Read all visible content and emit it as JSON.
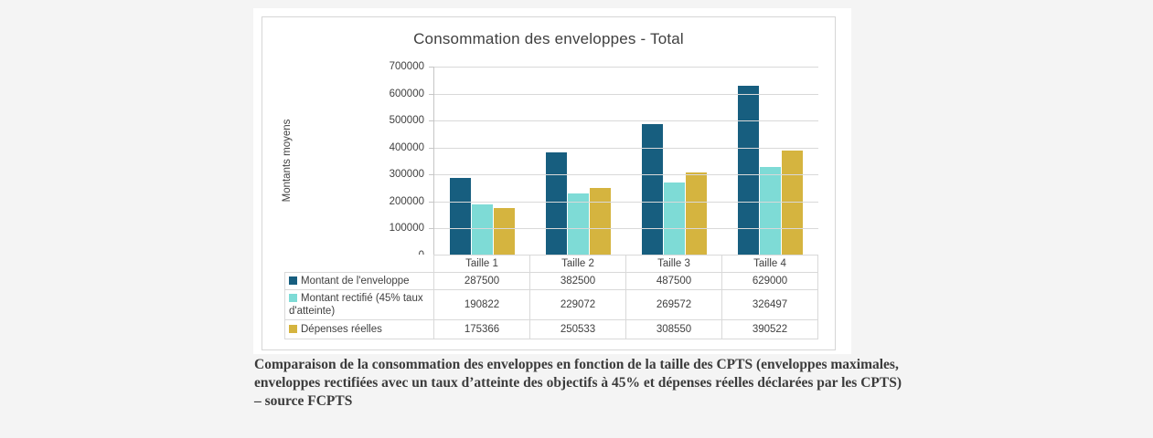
{
  "colors": {
    "page_background": "#f4f4f4",
    "card_background": "#ffffff",
    "frame_border": "#d6d6d6",
    "grid_line": "#d9d9d9",
    "text": "#404040",
    "caption_text": "#3b3b3b"
  },
  "chart_data": {
    "type": "bar",
    "title": "Consommation des enveloppes - Total",
    "xlabel": "",
    "ylabel": "Montants moyens",
    "categories": [
      "Taille 1",
      "Taille 2",
      "Taille 3",
      "Taille 4"
    ],
    "series": [
      {
        "name": "Montant de l'enveloppe",
        "color": "#175E7F",
        "values": [
          287500,
          382500,
          487500,
          629000
        ]
      },
      {
        "name": "Montant rectifié (45% taux d'atteinte)",
        "color": "#7EDBD6",
        "values": [
          190822,
          229072,
          269572,
          326497
        ]
      },
      {
        "name": "Dépenses réelles",
        "color": "#D5B43F",
        "values": [
          175366,
          250533,
          308550,
          390522
        ]
      }
    ],
    "ylim": [
      0,
      700000
    ],
    "ytick_step": 100000,
    "grid": true,
    "legend_position": "data-table-below-chart"
  },
  "caption": "Comparaison de la consommation des enveloppes en fonction de la taille des CPTS (enveloppes maximales, enveloppes rectifiées avec un taux d’atteinte des objectifs à 45% et dépenses réelles déclarées par les CPTS) – source FCPTS"
}
